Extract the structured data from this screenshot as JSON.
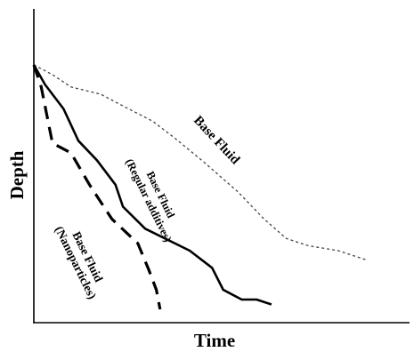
{
  "chart_data": {
    "type": "line",
    "xlabel": "Time",
    "ylabel": "Depth",
    "xlim": [
      0,
      100
    ],
    "ylim": [
      0,
      100
    ],
    "grid": false,
    "legend": "none",
    "series": [
      {
        "name": "Base Fluid",
        "style": "dotted",
        "color": "#444444",
        "points": [
          [
            0,
            0
          ],
          [
            5,
            4
          ],
          [
            10,
            9
          ],
          [
            18,
            12
          ],
          [
            23,
            16
          ],
          [
            32,
            23
          ],
          [
            38,
            30
          ],
          [
            46,
            40
          ],
          [
            55,
            52
          ],
          [
            62,
            63
          ],
          [
            68,
            71
          ],
          [
            74,
            74
          ],
          [
            82,
            76
          ],
          [
            90,
            80
          ]
        ]
      },
      {
        "name": "Base Fluid\n(Regular additives)",
        "style": "solid",
        "color": "#000000",
        "points": [
          [
            0,
            0
          ],
          [
            3,
            8
          ],
          [
            8,
            18
          ],
          [
            12,
            31
          ],
          [
            17,
            39
          ],
          [
            22,
            49
          ],
          [
            24,
            58
          ],
          [
            30,
            67
          ],
          [
            42,
            76
          ],
          [
            48,
            83
          ],
          [
            51,
            92
          ],
          [
            56,
            96
          ],
          [
            60,
            96
          ],
          [
            64,
            98
          ]
        ]
      },
      {
        "name": "Base Fluid\n(Nanoparticles)",
        "style": "dashed",
        "color": "#000000",
        "points": [
          [
            0,
            0
          ],
          [
            2,
            9
          ],
          [
            5,
            32
          ],
          [
            10,
            36
          ],
          [
            15,
            49
          ],
          [
            21,
            63
          ],
          [
            28,
            73
          ],
          [
            31,
            84
          ],
          [
            33,
            92
          ],
          [
            34,
            100
          ]
        ]
      }
    ]
  }
}
